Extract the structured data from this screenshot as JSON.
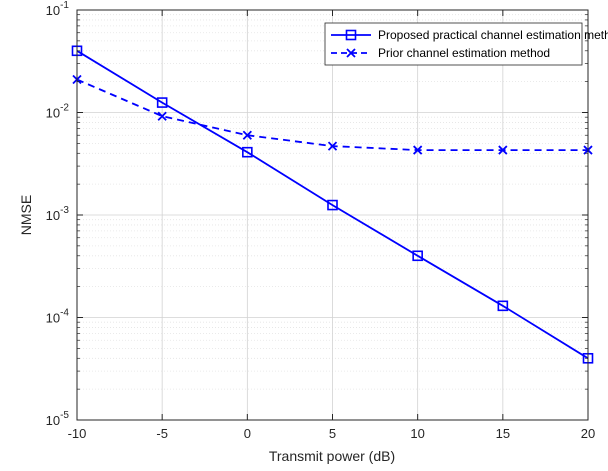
{
  "chart_data": {
    "type": "line",
    "title": "",
    "xlabel": "Transmit power (dB)",
    "ylabel": "NMSE",
    "xlim": [
      -10,
      20
    ],
    "ylim": [
      1e-05,
      0.1
    ],
    "yscale": "log",
    "grid": true,
    "legend_position": "top-right",
    "x_ticks": [
      -10,
      -5,
      0,
      5,
      10,
      15,
      20
    ],
    "x_tick_labels": [
      "-10",
      "-5",
      "0",
      "5",
      "10",
      "15",
      "20"
    ],
    "y_ticks": [
      1e-05,
      0.0001,
      0.001,
      0.01,
      0.1
    ],
    "y_tick_labels": [
      {
        "base": "10",
        "exp": "-5"
      },
      {
        "base": "10",
        "exp": "-4"
      },
      {
        "base": "10",
        "exp": "-3"
      },
      {
        "base": "10",
        "exp": "-2"
      },
      {
        "base": "10",
        "exp": "-1"
      }
    ],
    "x": [
      -10,
      -5,
      0,
      5,
      10,
      15,
      20
    ],
    "series": [
      {
        "name": "Proposed practical channel estimation method",
        "values": [
          0.04,
          0.0125,
          0.0041,
          0.00125,
          0.0004,
          0.00013,
          4e-05
        ],
        "color": "#0000ff",
        "line_style": "solid",
        "marker": "square"
      },
      {
        "name": "Prior channel estimation method",
        "values": [
          0.021,
          0.0092,
          0.006,
          0.0047,
          0.0043,
          0.0043,
          0.0043
        ],
        "color": "#0000ff",
        "line_style": "dashed",
        "marker": "x"
      }
    ]
  }
}
